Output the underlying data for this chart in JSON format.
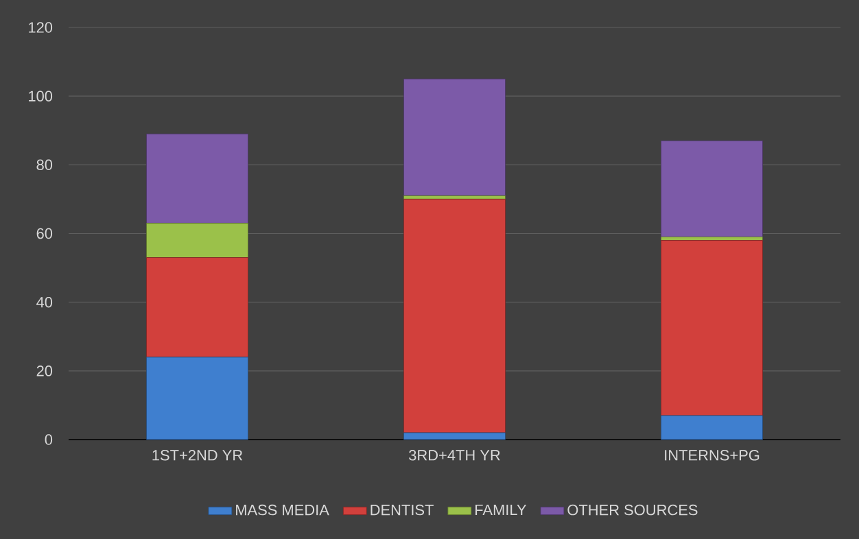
{
  "chart_data": {
    "type": "bar",
    "stacked": true,
    "categories": [
      "1ST+2ND YR",
      "3RD+4TH YR",
      "INTERNS+PG"
    ],
    "series": [
      {
        "name": "MASS MEDIA",
        "color": "#3f7fcf",
        "values": [
          24,
          2,
          7
        ]
      },
      {
        "name": "DENTIST",
        "color": "#d2403c",
        "values": [
          29,
          68,
          51
        ]
      },
      {
        "name": "FAMILY",
        "color": "#9bc14a",
        "values": [
          10,
          1,
          1
        ]
      },
      {
        "name": "OTHER SOURCES",
        "color": "#7c5aa8",
        "values": [
          26,
          34,
          28
        ]
      }
    ],
    "ylim": [
      0,
      120
    ],
    "yticks": [
      0,
      20,
      40,
      60,
      80,
      100,
      120
    ],
    "grid": "y",
    "legend": "bottom"
  }
}
